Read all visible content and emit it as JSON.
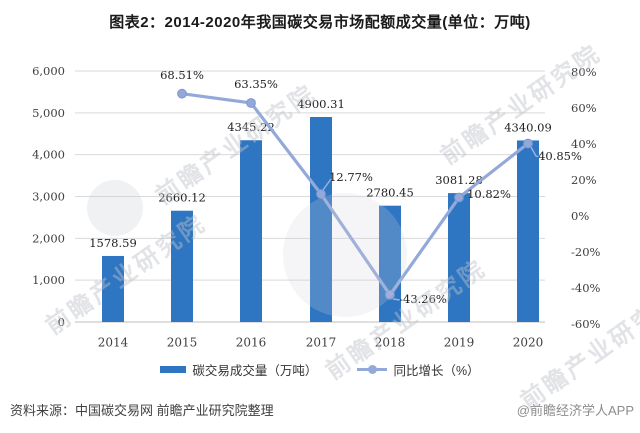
{
  "page": {
    "title": "图表2：2014-2020年我国碳交易市场配额成交量(单位：万吨)"
  },
  "watermark": {
    "text": "前瞻产业研究院"
  },
  "footer": {
    "source": "资料来源：中国碳交易网 前瞻产业研究院整理",
    "credit": "@前瞻经济学人APP"
  },
  "colors": {
    "bar": "#2F76C2",
    "line": "#93A9D9",
    "marker_stroke": "#7E97CF",
    "leader": "#9FB2DD",
    "grid": "#D9D9D9",
    "axis_line": "#BFBFBF",
    "tick_text": "#404040",
    "label_text": "#1F1F1F",
    "title_text": "#1A1A1A",
    "source_text": "#404040",
    "credit_text": "#8C8C8C",
    "watermark": "rgba(188,192,200,0.45)"
  },
  "chart_data": {
    "type": "bar+line",
    "categories": [
      "2014",
      "2015",
      "2016",
      "2017",
      "2018",
      "2019",
      "2020"
    ],
    "series": [
      {
        "name": "碳交易成交量（万吨）",
        "type": "bar",
        "axis": "left",
        "values": [
          1578.59,
          2660.12,
          4345.22,
          4900.31,
          2780.45,
          3081.28,
          4340.09
        ],
        "point_labels": [
          "1578.59",
          "2660.12",
          "4345.22",
          "4900.31",
          "2780.45",
          "3081.28",
          "4340.09"
        ]
      },
      {
        "name": "同比增长（%）",
        "type": "line",
        "axis": "right",
        "values": [
          null,
          68.51,
          63.35,
          12.77,
          -43.26,
          10.82,
          40.85
        ],
        "point_labels": [
          "",
          "68.51%",
          "63.35%",
          "12.77%",
          "-43.26%",
          "10.82%",
          "40.85%"
        ]
      }
    ],
    "left_axis": {
      "min": 0,
      "max": 6000,
      "step": 1000,
      "ticks": [
        "0",
        "1,000",
        "2,000",
        "3,000",
        "4,000",
        "5,000",
        "6,000"
      ]
    },
    "right_axis": {
      "min": -60,
      "max": 80,
      "step": 20,
      "ticks": [
        "-60%",
        "-40%",
        "-20%",
        "0%",
        "20%",
        "40%",
        "60%",
        "80%"
      ]
    },
    "legend": {
      "position": "bottom",
      "entries": [
        "碳交易成交量（万吨）",
        "同比增长（%）"
      ]
    },
    "grid": true
  }
}
